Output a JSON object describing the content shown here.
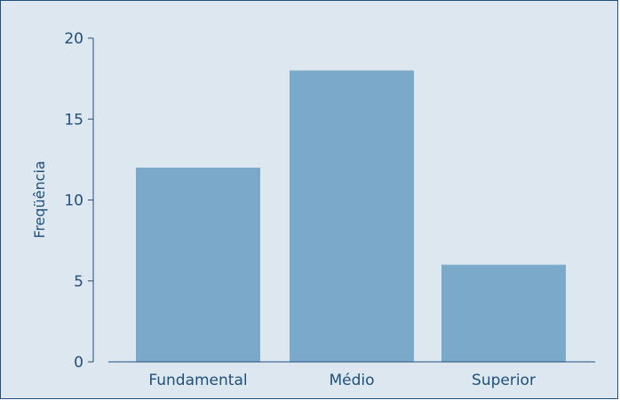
{
  "chart_data": {
    "type": "bar",
    "title": "",
    "xlabel": "",
    "ylabel": "Freqüência",
    "categories": [
      "Fundamental",
      "Médio",
      "Superior"
    ],
    "values": [
      12,
      18,
      6
    ],
    "ylim": [
      0,
      20
    ],
    "yticks": [
      0,
      5,
      10,
      15,
      20
    ],
    "grid": false,
    "colors": {
      "background": "#dde7f0",
      "bar": "#7ba9c9",
      "axis": "#1f4f7a",
      "text": "#1f4f7a"
    }
  }
}
